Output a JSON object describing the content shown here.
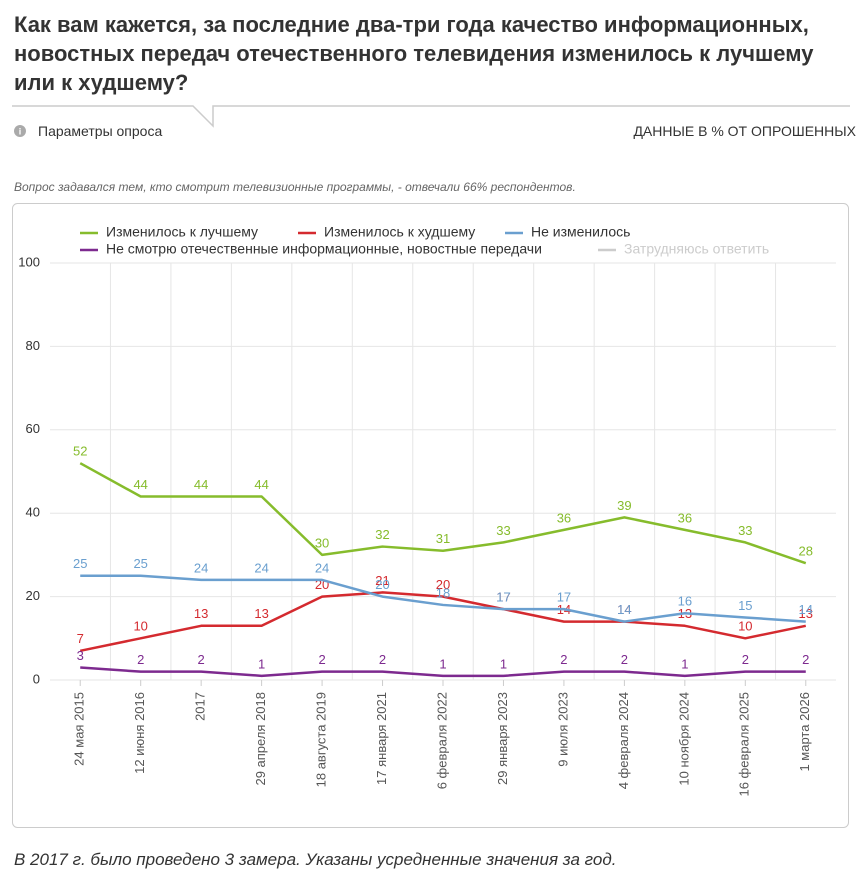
{
  "header": {
    "title": "Как вам кажется, за последние два-три года качество информационных, новостных передач отечественного телевидения изменилось к лучшему или к худшему?",
    "params": "Параметры опроса",
    "units": "ДАННЫЕ В % ОТ ОПРОШЕННЫХ",
    "note": "Вопрос задавался тем, кто смотрит телевизионные программы, - отвечали 66% респондентов."
  },
  "chart_data": {
    "type": "line",
    "categories": [
      "24 мая 2015",
      "12 июня 2016",
      "2017",
      "29 апреля 2018",
      "18 августа 2019",
      "17 января 2021",
      "6 февраля 2022",
      "29 января 2023",
      "9 июля 2023",
      "4 февраля 2024",
      "10 ноября 2024",
      "16 февраля 2025",
      "1 марта 2026"
    ],
    "series": [
      {
        "name": "Изменилось к лучшему",
        "color": "#86bc2c",
        "values": [
          52,
          44,
          44,
          44,
          30,
          32,
          31,
          33,
          36,
          39,
          36,
          33,
          28
        ]
      },
      {
        "name": "Изменилось к худшему",
        "color": "#d42a2f",
        "values": [
          7,
          10,
          13,
          13,
          20,
          21,
          20,
          17,
          14,
          14,
          13,
          10,
          13
        ]
      },
      {
        "name": "Не изменилось",
        "color": "#6a9fcf",
        "values": [
          25,
          25,
          24,
          24,
          24,
          20,
          18,
          17,
          17,
          14,
          16,
          15,
          14
        ]
      },
      {
        "name": "Не смотрю отечественные информационные, новостные передачи",
        "color": "#7d2a8f",
        "values": [
          3,
          2,
          2,
          1,
          2,
          2,
          1,
          1,
          2,
          2,
          1,
          2,
          2
        ]
      },
      {
        "name": "Затрудняюсь ответить",
        "color": "#cccccc",
        "hidden": true,
        "values": [
          null,
          null,
          null,
          null,
          null,
          null,
          null,
          null,
          null,
          null,
          null,
          null,
          null
        ]
      }
    ],
    "ylim": [
      0,
      100
    ],
    "yticks": [
      0,
      20,
      40,
      60,
      80,
      100
    ],
    "grid": true,
    "data_labels": true
  },
  "footer": {
    "text": "В 2017 г. было проведено 3 замера. Указаны усредненные значения за год."
  }
}
